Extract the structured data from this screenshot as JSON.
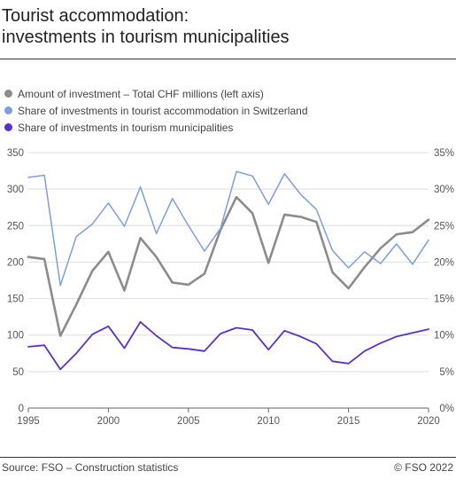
{
  "title": {
    "line1": "Tourist accommodation:",
    "line2": "investments in tourism municipalities"
  },
  "footer": {
    "source": "Source: FSO – Construction statistics",
    "copyright": "© FSO 2022"
  },
  "chart_data": {
    "type": "line",
    "legend": {
      "placement": "top-left",
      "entries": [
        {
          "label": "Amount of investment – Total CHF millions (left axis)",
          "color": "#8c8c8c"
        },
        {
          "label": "Share of investments in tourist accommodation in Switzerland",
          "color": "#7b9fe0"
        },
        {
          "label": "Share of investments in tourism municipalities",
          "color": "#5a2fd0"
        }
      ]
    },
    "x": [
      1995,
      1996,
      1997,
      1998,
      1999,
      2000,
      2001,
      2002,
      2003,
      2004,
      2005,
      2006,
      2007,
      2008,
      2009,
      2010,
      2011,
      2012,
      2013,
      2014,
      2015,
      2016,
      2017,
      2018,
      2019,
      2020
    ],
    "x_ticks": [
      1995,
      2000,
      2005,
      2010,
      2015,
      2020
    ],
    "y_left": {
      "ticks": [
        0,
        50,
        100,
        150,
        200,
        250,
        300,
        350
      ],
      "range": [
        0,
        350
      ]
    },
    "y_right": {
      "ticks": [
        "0%",
        "5%",
        "10%",
        "15%",
        "20%",
        "25%",
        "30%",
        "35%"
      ],
      "range": [
        0,
        35
      ]
    },
    "grid": true,
    "series": [
      {
        "name": "Amount of investment – Total CHF millions (left axis)",
        "axis": "left",
        "color": "#8c8c8c",
        "width": 2.6,
        "values": [
          207,
          204,
          99,
          142,
          188,
          214,
          161,
          233,
          207,
          172,
          169,
          184,
          244,
          289,
          267,
          199,
          265,
          262,
          255,
          186,
          164,
          193,
          219,
          238,
          241,
          258
        ]
      },
      {
        "name": "Share of investments in tourist accommodation in Switzerland",
        "axis": "right",
        "color": "#7b9fe0",
        "width": 1.5,
        "values": [
          31.6,
          31.9,
          16.8,
          23.5,
          25.2,
          28.1,
          24.9,
          30.3,
          23.9,
          28.7,
          25.0,
          21.5,
          24.6,
          32.4,
          31.8,
          27.9,
          32.1,
          29.3,
          27.2,
          21.6,
          19.2,
          21.4,
          19.8,
          22.5,
          19.7,
          23.0
        ]
      },
      {
        "name": "Share of investments in tourism municipalities",
        "axis": "right",
        "color": "#5a2fd0",
        "width": 1.8,
        "values": [
          8.4,
          8.6,
          5.3,
          7.5,
          10.1,
          11.2,
          8.2,
          11.8,
          9.9,
          8.3,
          8.1,
          7.8,
          10.2,
          11.0,
          10.7,
          8.0,
          10.6,
          9.8,
          8.8,
          6.4,
          6.1,
          7.8,
          8.9,
          9.8,
          10.3,
          10.8
        ]
      }
    ]
  }
}
